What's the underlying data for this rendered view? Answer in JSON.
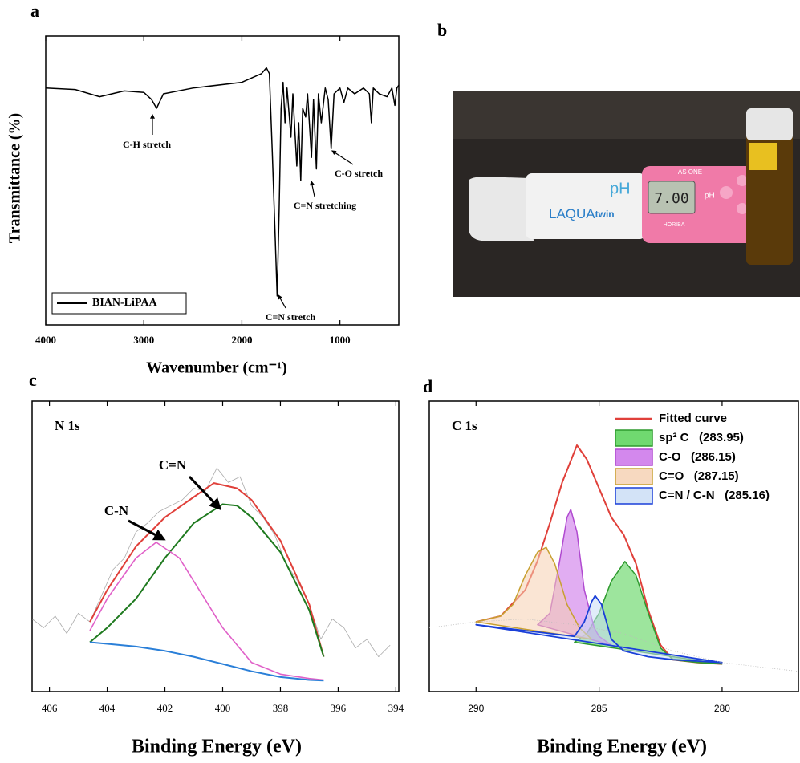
{
  "panel_labels": [
    "a",
    "b",
    "c",
    "d"
  ],
  "photo": {
    "ph_label": "pH",
    "brand": "LAQUA",
    "brand_suffix": "twin",
    "reading": "7.00",
    "maker": "AS ONE",
    "maker2": "HORIBA",
    "ph_small": "pH"
  },
  "chart_data": [
    {
      "type": "line",
      "xlabel": "Wavenumber (cm⁻¹)",
      "ylabel": "Transmittance (%)",
      "xlim": [
        4000,
        400
      ],
      "ylim": [
        0,
        100
      ],
      "xticks": [
        4000,
        3000,
        2000,
        1000
      ],
      "legend": "lower left",
      "annotations": [
        "C-H stretch",
        "C=N stretching",
        "C-O stretch",
        "C=N stretch"
      ],
      "series": [
        {
          "name": "BIAN-LiPAA",
          "color": "#000000",
          "x": [
            4000,
            3700,
            3450,
            3200,
            3000,
            2920,
            2870,
            2800,
            2500,
            2000,
            1800,
            1750,
            1720,
            1690,
            1660,
            1640,
            1620,
            1600,
            1580,
            1560,
            1540,
            1500,
            1480,
            1440,
            1420,
            1400,
            1380,
            1350,
            1330,
            1290,
            1270,
            1240,
            1220,
            1190,
            1150,
            1120,
            1090,
            1060,
            1000,
            960,
            920,
            850,
            760,
            700,
            680,
            660,
            600,
            520,
            470,
            440,
            420,
            400
          ],
          "values": [
            82,
            81.5,
            79,
            81,
            80.5,
            78,
            75,
            80,
            82,
            84,
            87,
            89,
            87,
            60,
            30,
            10,
            40,
            75,
            84,
            70,
            82,
            65,
            80,
            55,
            70,
            50,
            75,
            72,
            80,
            58,
            78,
            54,
            80,
            70,
            82,
            78,
            61,
            80,
            82,
            77,
            82,
            80,
            82,
            80,
            70,
            82,
            80,
            79,
            82,
            76,
            82,
            83
          ]
        }
      ]
    },
    {
      "type": "line",
      "panel_title": "N 1s",
      "xlabel": "Binding Energy (eV)",
      "xlim": [
        406.6,
        393.9
      ],
      "ylim": [
        0,
        100
      ],
      "xticks": [
        406,
        404,
        402,
        400,
        398,
        396,
        394
      ],
      "annotations": [
        "C=N",
        "C-N"
      ],
      "series": [
        {
          "color": "#aaaaaa",
          "width": 0.8,
          "x": [
            406.6,
            406.2,
            405.8,
            405.4,
            405,
            404.6,
            404.2,
            403.8,
            403.4,
            403,
            402.6,
            402.2,
            401.8,
            401.4,
            401,
            400.6,
            400.2,
            399.8,
            399.4,
            399,
            398.6,
            398.2,
            397.8,
            397.4,
            397,
            396.6,
            396.2,
            395.8,
            395.4,
            395,
            394.6,
            394.2
          ],
          "values": [
            25,
            22,
            26,
            20,
            27,
            24,
            33,
            42,
            46,
            55,
            58,
            62,
            64,
            66,
            70,
            69,
            77,
            72,
            74,
            64,
            60,
            54,
            44,
            38,
            30,
            18,
            25,
            22,
            15,
            18,
            12,
            16
          ]
        },
        {
          "color": "#e0403a",
          "width": 2,
          "x": [
            404.6,
            404,
            403,
            402,
            401,
            400.3,
            399.5,
            399,
            398,
            397,
            396.5
          ],
          "values": [
            24,
            35,
            50,
            60,
            67,
            71.8,
            70,
            66,
            52,
            30,
            12
          ]
        },
        {
          "color": "#1f7a1f",
          "width": 2,
          "x": [
            404.6,
            404,
            403,
            402,
            401,
            400,
            399.5,
            399,
            398,
            397,
            396.5
          ],
          "values": [
            17,
            22,
            32,
            46,
            58,
            64.5,
            64,
            60,
            48,
            28,
            12
          ]
        },
        {
          "color": "#e060c8",
          "width": 1.6,
          "x": [
            404.6,
            404,
            403,
            402.3,
            401.5,
            401,
            400,
            399,
            398,
            397,
            396.5
          ],
          "values": [
            21,
            32,
            46,
            51.4,
            46,
            38,
            22,
            10,
            6,
            4.5,
            4
          ]
        },
        {
          "color": "#2a7fd8",
          "width": 2,
          "x": [
            404.6,
            403,
            402,
            401,
            400,
            399,
            398,
            397,
            396.5
          ],
          "values": [
            17,
            15.5,
            14,
            12,
            9.5,
            7,
            5,
            4,
            3.8
          ]
        }
      ]
    },
    {
      "type": "line",
      "panel_title": "C 1s",
      "xlabel": "Binding Energy (eV)",
      "xlim": [
        291.9,
        276.9
      ],
      "ylim": [
        0,
        100
      ],
      "xticks": [
        290,
        285,
        280
      ],
      "legend": "upper right",
      "series": [
        {
          "name": "Fitted curve",
          "color": "#e0403a",
          "width": 2,
          "x": [
            290,
            289,
            288,
            287.5,
            287,
            286.5,
            285.9,
            285.5,
            285,
            284.5,
            284,
            283.5,
            283,
            282.5,
            282,
            281,
            280
          ],
          "values": [
            24,
            26,
            35,
            45,
            58,
            72,
            84.8,
            80,
            70,
            60,
            54,
            44,
            28,
            16,
            11,
            10,
            9.5
          ]
        },
        {
          "name": "sp² C   (283.95)",
          "color": "#2e9a2e",
          "fill": "#4ccf4c",
          "width": 1.5,
          "x": [
            286,
            285.5,
            285,
            284.5,
            283.95,
            283.5,
            283,
            282.5,
            282,
            281,
            280
          ],
          "values": [
            17,
            20,
            27,
            38,
            44.8,
            40,
            27,
            15,
            11,
            10,
            9.5
          ]
        },
        {
          "name": "C-O   (286.15)",
          "color": "#b04ad0",
          "fill": "#c86ae8",
          "width": 1.5,
          "x": [
            287.5,
            287,
            286.6,
            286.3,
            286.15,
            285.9,
            285.6,
            285.2,
            285,
            284.5
          ],
          "values": [
            23,
            27,
            45,
            60,
            62.7,
            55,
            35,
            22,
            19,
            16
          ]
        },
        {
          "name": "C=O   (287.15)",
          "color": "#c8a030",
          "fill": "#f5cfb0",
          "width": 1.5,
          "x": [
            290,
            289,
            288.5,
            288,
            287.5,
            287.15,
            286.8,
            286.3,
            285.8,
            285.3
          ],
          "values": [
            24,
            26,
            30,
            40,
            48,
            49.7,
            44,
            30,
            22,
            18
          ]
        },
        {
          "name": "C=N / C-N   (285.16)",
          "color": "#1a3fd8",
          "fill": "#c8dcf5",
          "width": 1.8,
          "x": [
            290,
            289,
            288,
            287,
            286,
            285.6,
            285.3,
            285.16,
            284.9,
            284.5,
            284,
            283,
            282,
            281,
            280
          ],
          "values": [
            23,
            22,
            21,
            20,
            19,
            24,
            31,
            33,
            30,
            18,
            14,
            12,
            11,
            10.5,
            10
          ]
        },
        {
          "color": "#bbbbbb",
          "width": 0.8,
          "dash": true,
          "x": [
            291.9,
            290,
            288,
            286,
            284,
            282,
            280,
            278,
            276.9
          ],
          "values": [
            22,
            24,
            25,
            23,
            20,
            14,
            10,
            8,
            7
          ]
        }
      ]
    }
  ]
}
